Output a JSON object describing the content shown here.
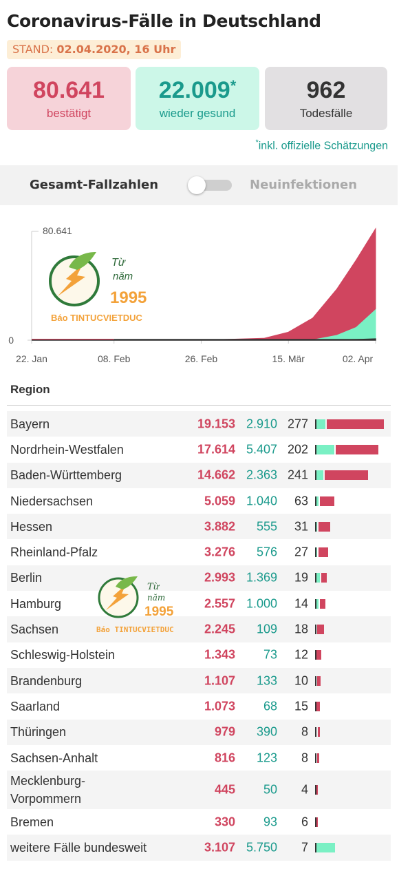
{
  "title": "Coronavirus-Fälle in Deutschland",
  "stand": {
    "label": "STAND:",
    "date": "02.04.2020, 16 Uhr"
  },
  "cards": {
    "confirmed": {
      "value": "80.641",
      "label": "bestätigt"
    },
    "recovered": {
      "value": "22.009",
      "marker": "*",
      "label": "wieder gesund"
    },
    "deaths": {
      "value": "962",
      "label": "Todesfälle"
    }
  },
  "footnote": {
    "marker": "*",
    "text": "inkl. offizielle Schätzungen"
  },
  "toggle": {
    "left": "Gesamt-Fallzahlen",
    "right": "Neuinfektionen"
  },
  "watermark": {
    "line1": "Từ",
    "line2": "năm",
    "year": "1995",
    "brand": "Báo TINTUCVIETDUC"
  },
  "colors": {
    "confirmed": "#d0455f",
    "recovered": "#7af0c4",
    "recovered_text": "#1a9a8c",
    "deaths": "#333333"
  },
  "chart_data": {
    "type": "area",
    "x": [
      "2020-01-22",
      "2020-02-08",
      "2020-02-26",
      "2020-03-10",
      "2020-03-15",
      "2020-03-20",
      "2020-03-25",
      "2020-03-29",
      "2020-04-02"
    ],
    "x_tick_labels": [
      "22. Jan",
      "08. Feb",
      "26. Feb",
      "15. Mär",
      "02. Apr"
    ],
    "y_tick_labels": [
      "80.641",
      "0"
    ],
    "ylim": [
      0,
      80641
    ],
    "series": [
      {
        "name": "bestätigt",
        "values": [
          0,
          14,
          18,
          1400,
          5800,
          16000,
          37000,
          58000,
          80641
        ]
      },
      {
        "name": "wieder gesund",
        "values": [
          0,
          0,
          16,
          18,
          50,
          180,
          3500,
          9200,
          22009
        ]
      },
      {
        "name": "Todesfälle",
        "values": [
          0,
          0,
          0,
          2,
          11,
          48,
          206,
          455,
          962
        ]
      }
    ]
  },
  "table": {
    "header": "Region",
    "rows": [
      {
        "region": "Bayern",
        "confirmed": "19.153",
        "recovered": "2.910",
        "deaths": "277"
      },
      {
        "region": "Nordrhein-Westfalen",
        "confirmed": "17.614",
        "recovered": "5.407",
        "deaths": "202"
      },
      {
        "region": "Baden-Württemberg",
        "confirmed": "14.662",
        "recovered": "2.363",
        "deaths": "241"
      },
      {
        "region": "Niedersachsen",
        "confirmed": "5.059",
        "recovered": "1.040",
        "deaths": "63"
      },
      {
        "region": "Hessen",
        "confirmed": "3.882",
        "recovered": "555",
        "deaths": "31"
      },
      {
        "region": "Rheinland-Pfalz",
        "confirmed": "3.276",
        "recovered": "576",
        "deaths": "27"
      },
      {
        "region": "Berlin",
        "confirmed": "2.993",
        "recovered": "1.369",
        "deaths": "19"
      },
      {
        "region": "Hamburg",
        "confirmed": "2.557",
        "recovered": "1.000",
        "deaths": "14"
      },
      {
        "region": "Sachsen",
        "confirmed": "2.245",
        "recovered": "109",
        "deaths": "18"
      },
      {
        "region": "Schleswig-Holstein",
        "confirmed": "1.343",
        "recovered": "73",
        "deaths": "12"
      },
      {
        "region": "Brandenburg",
        "confirmed": "1.107",
        "recovered": "133",
        "deaths": "10"
      },
      {
        "region": "Saarland",
        "confirmed": "1.073",
        "recovered": "68",
        "deaths": "15"
      },
      {
        "region": "Thüringen",
        "confirmed": "979",
        "recovered": "390",
        "deaths": "8"
      },
      {
        "region": "Sachsen-Anhalt",
        "confirmed": "816",
        "recovered": "123",
        "deaths": "8"
      },
      {
        "region": "Mecklenburg-Vorpommern",
        "region_lines": [
          "Mecklenburg-",
          "Vorpommern"
        ],
        "confirmed": "445",
        "recovered": "50",
        "deaths": "4"
      },
      {
        "region": "Bremen",
        "confirmed": "330",
        "recovered": "93",
        "deaths": "6"
      },
      {
        "region": "weitere Fälle bundesweit",
        "confirmed": "3.107",
        "recovered": "5.750",
        "deaths": "7"
      }
    ]
  }
}
